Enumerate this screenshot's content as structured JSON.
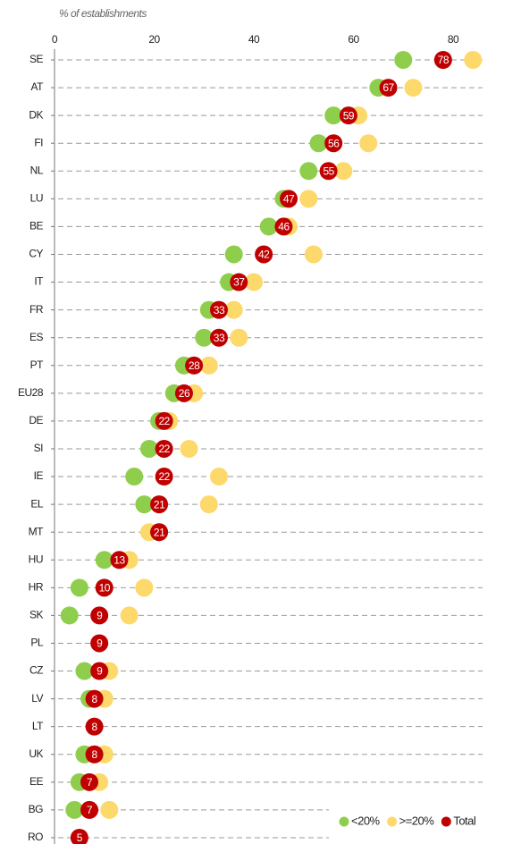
{
  "chart_data": {
    "type": "dot",
    "axis_label": "% of establishments",
    "categories": [
      "SE",
      "AT",
      "DK",
      "FI",
      "NL",
      "LU",
      "BE",
      "CY",
      "IT",
      "FR",
      "ES",
      "PT",
      "EU28",
      "DE",
      "SI",
      "IE",
      "EL",
      "MT",
      "HU",
      "HR",
      "SK",
      "PL",
      "CZ",
      "LV",
      "LT",
      "UK",
      "EE",
      "BG",
      "RO"
    ],
    "series": [
      {
        "name": ">=20%",
        "color": "#fdd86b",
        "values": [
          84,
          72,
          61,
          63,
          58,
          51,
          47,
          52,
          40,
          36,
          37,
          31,
          28,
          23,
          27,
          33,
          31,
          19,
          15,
          18,
          15,
          null,
          11,
          10,
          null,
          10,
          9,
          11,
          null
        ]
      },
      {
        "name": "<20%",
        "color": "#8fce4c",
        "values": [
          70,
          65,
          56,
          53,
          51,
          46,
          43,
          36,
          35,
          31,
          30,
          26,
          24,
          21,
          19,
          16,
          18,
          21,
          10,
          5,
          3,
          null,
          6,
          7,
          null,
          6,
          5,
          4,
          null
        ]
      },
      {
        "name": "Total",
        "color": "#c00000",
        "values": [
          78,
          67,
          59,
          56,
          55,
          47,
          46,
          42,
          37,
          33,
          33,
          28,
          26,
          22,
          22,
          22,
          21,
          21,
          13,
          10,
          9,
          9,
          9,
          8,
          8,
          8,
          7,
          7,
          5
        ]
      }
    ],
    "legend_order": [
      1,
      0,
      2
    ],
    "xlim": [
      0,
      80
    ],
    "xticks": [
      0,
      20,
      40,
      60,
      80
    ],
    "grid": true
  }
}
